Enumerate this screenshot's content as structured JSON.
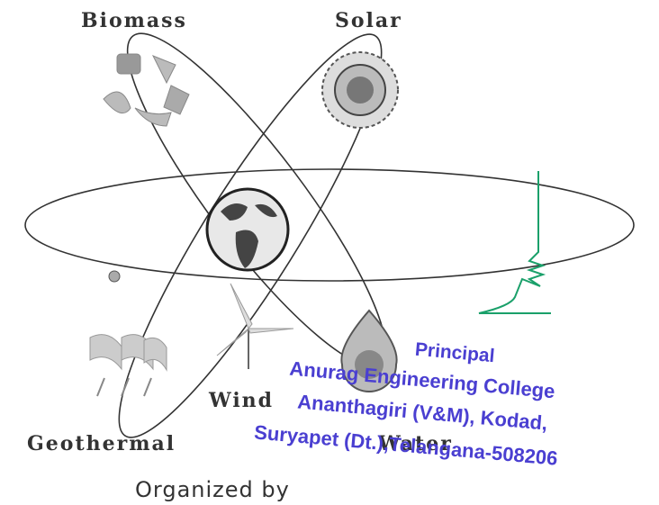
{
  "labels": {
    "biomass": "Biomass",
    "solar": "Solar",
    "wind": "Wind",
    "geothermal": "Geothermal",
    "water": "Water"
  },
  "footer": "Organized by",
  "stamp": {
    "title": "Principal",
    "lines": [
      "Anurag Engineering College",
      "Ananthagiri (V&M), Kodad,",
      "Suryapet (Dt.),Telangana-508206"
    ]
  }
}
